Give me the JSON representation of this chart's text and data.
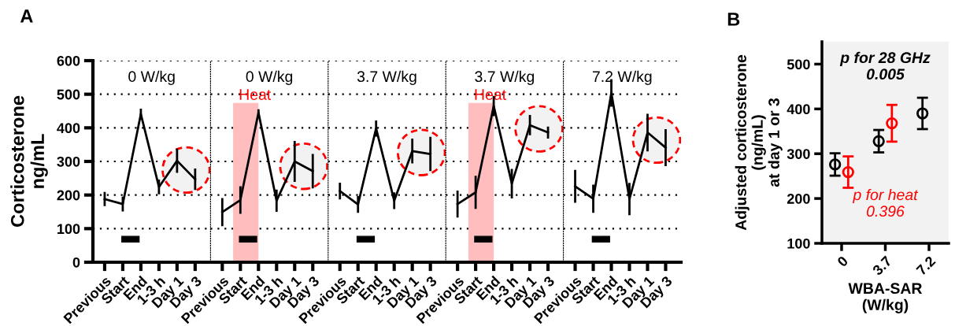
{
  "chart_data": [
    {
      "type": "line",
      "title": "0 W/kg",
      "ylabel": "Corticosterone\nng/mL",
      "annotations": [
        "A"
      ],
      "categories": [
        "Previous",
        "Start",
        "End",
        "1-3 h",
        "Day 1",
        "Day 3"
      ],
      "series": [
        {
          "color": "#000000",
          "values": [
            188,
            173,
            441,
            224,
            302,
            247
          ],
          "errors": [
            21,
            22,
            16,
            22,
            36,
            32
          ]
        }
      ],
      "ylim": [
        0,
        600
      ],
      "yticks": [
        0,
        100,
        200,
        300,
        400,
        500,
        600
      ],
      "grid": "y",
      "marker": "none",
      "line_style": "solid"
    },
    {
      "type": "line",
      "title": "0 W/kg",
      "categories": [
        "Previous",
        "Start",
        "End",
        "1-3 h",
        "Day 1",
        "Day 3"
      ],
      "series": [
        {
          "color": "#000000",
          "values": [
            149,
            185,
            445,
            183,
            300,
            271
          ],
          "errors": [
            42,
            41,
            10,
            33,
            61,
            51
          ]
        }
      ],
      "bands": [
        {
          "axis": "x",
          "from": "Start",
          "to": "End",
          "label": "Heat",
          "color": "#ffbdbd"
        }
      ],
      "ylim": [
        0,
        600
      ],
      "yticks": [
        0,
        100,
        200,
        300,
        400,
        500,
        600
      ],
      "tick_labels": "x",
      "grid": "y",
      "marker": "none",
      "line_style": "solid"
    },
    {
      "type": "line",
      "title": "3.7 W/kg",
      "categories": [
        "Previous",
        "Start",
        "End",
        "1-3 h",
        "Day 1",
        "Day 3"
      ],
      "series": [
        {
          "color": "#000000",
          "values": [
            212,
            172,
            398,
            183,
            331,
            322
          ],
          "errors": [
            25,
            25,
            24,
            25,
            37,
            51
          ]
        }
      ],
      "ylim": [
        0,
        600
      ],
      "yticks": [
        0,
        100,
        200,
        300,
        400,
        500,
        600
      ],
      "tick_labels": "x",
      "grid": "y",
      "marker": "none",
      "line_style": "solid"
    },
    {
      "type": "line",
      "title": "3.7 W/kg",
      "categories": [
        "Previous",
        "Start",
        "End",
        "1-3 h",
        "Day 1",
        "Day 3"
      ],
      "series": [
        {
          "color": "#000000",
          "values": [
            173,
            208,
            465,
            234,
            408,
            386
          ],
          "errors": [
            40,
            49,
            30,
            44,
            30,
            18
          ]
        }
      ],
      "bands": [
        {
          "axis": "x",
          "from": "Start",
          "to": "End",
          "label": "Heat",
          "color": "#ffbdbd"
        }
      ],
      "ylim": [
        0,
        600
      ],
      "yticks": [
        0,
        100,
        200,
        300,
        400,
        500,
        600
      ],
      "tick_labels": "x",
      "grid": "y",
      "marker": "none",
      "line_style": "solid"
    },
    {
      "type": "line",
      "title": "7.2 W/kg",
      "categories": [
        "Previous",
        "Start",
        "End",
        "1-3 h",
        "Day 1",
        "Day 3"
      ],
      "series": [
        {
          "color": "#000000",
          "values": [
            226,
            189,
            504,
            188,
            386,
            341
          ],
          "errors": [
            49,
            42,
            41,
            48,
            56,
            55
          ]
        }
      ],
      "ylim": [
        0,
        600
      ],
      "yticks": [
        0,
        100,
        200,
        300,
        400,
        500,
        600
      ],
      "tick_labels": "x",
      "grid": "y",
      "marker": "none",
      "line_style": "solid"
    },
    {
      "type": "scatter",
      "xlabel": "WBA-SAR\n(W/kg)",
      "ylabel": "Adjusted corticosterone\n(ng/mL)\nat day 1 or 3",
      "annotations": [
        "B",
        "p for 28 GHz\n0.005",
        "p for heat\n0.396"
      ],
      "categories": [
        "0",
        "3.7",
        "7.2"
      ],
      "series": [
        {
          "color": "#000000",
          "values": [
            276,
            328,
            390
          ],
          "errors": [
            25,
            25,
            35
          ]
        },
        {
          "color": "#ff0000",
          "values": [
            259,
            368,
            null
          ],
          "errors": [
            35,
            41,
            null
          ]
        }
      ],
      "ylim": [
        100,
        550
      ],
      "yticks": [
        100,
        200,
        300,
        400,
        500
      ],
      "grid": false,
      "marker": "circle"
    }
  ]
}
